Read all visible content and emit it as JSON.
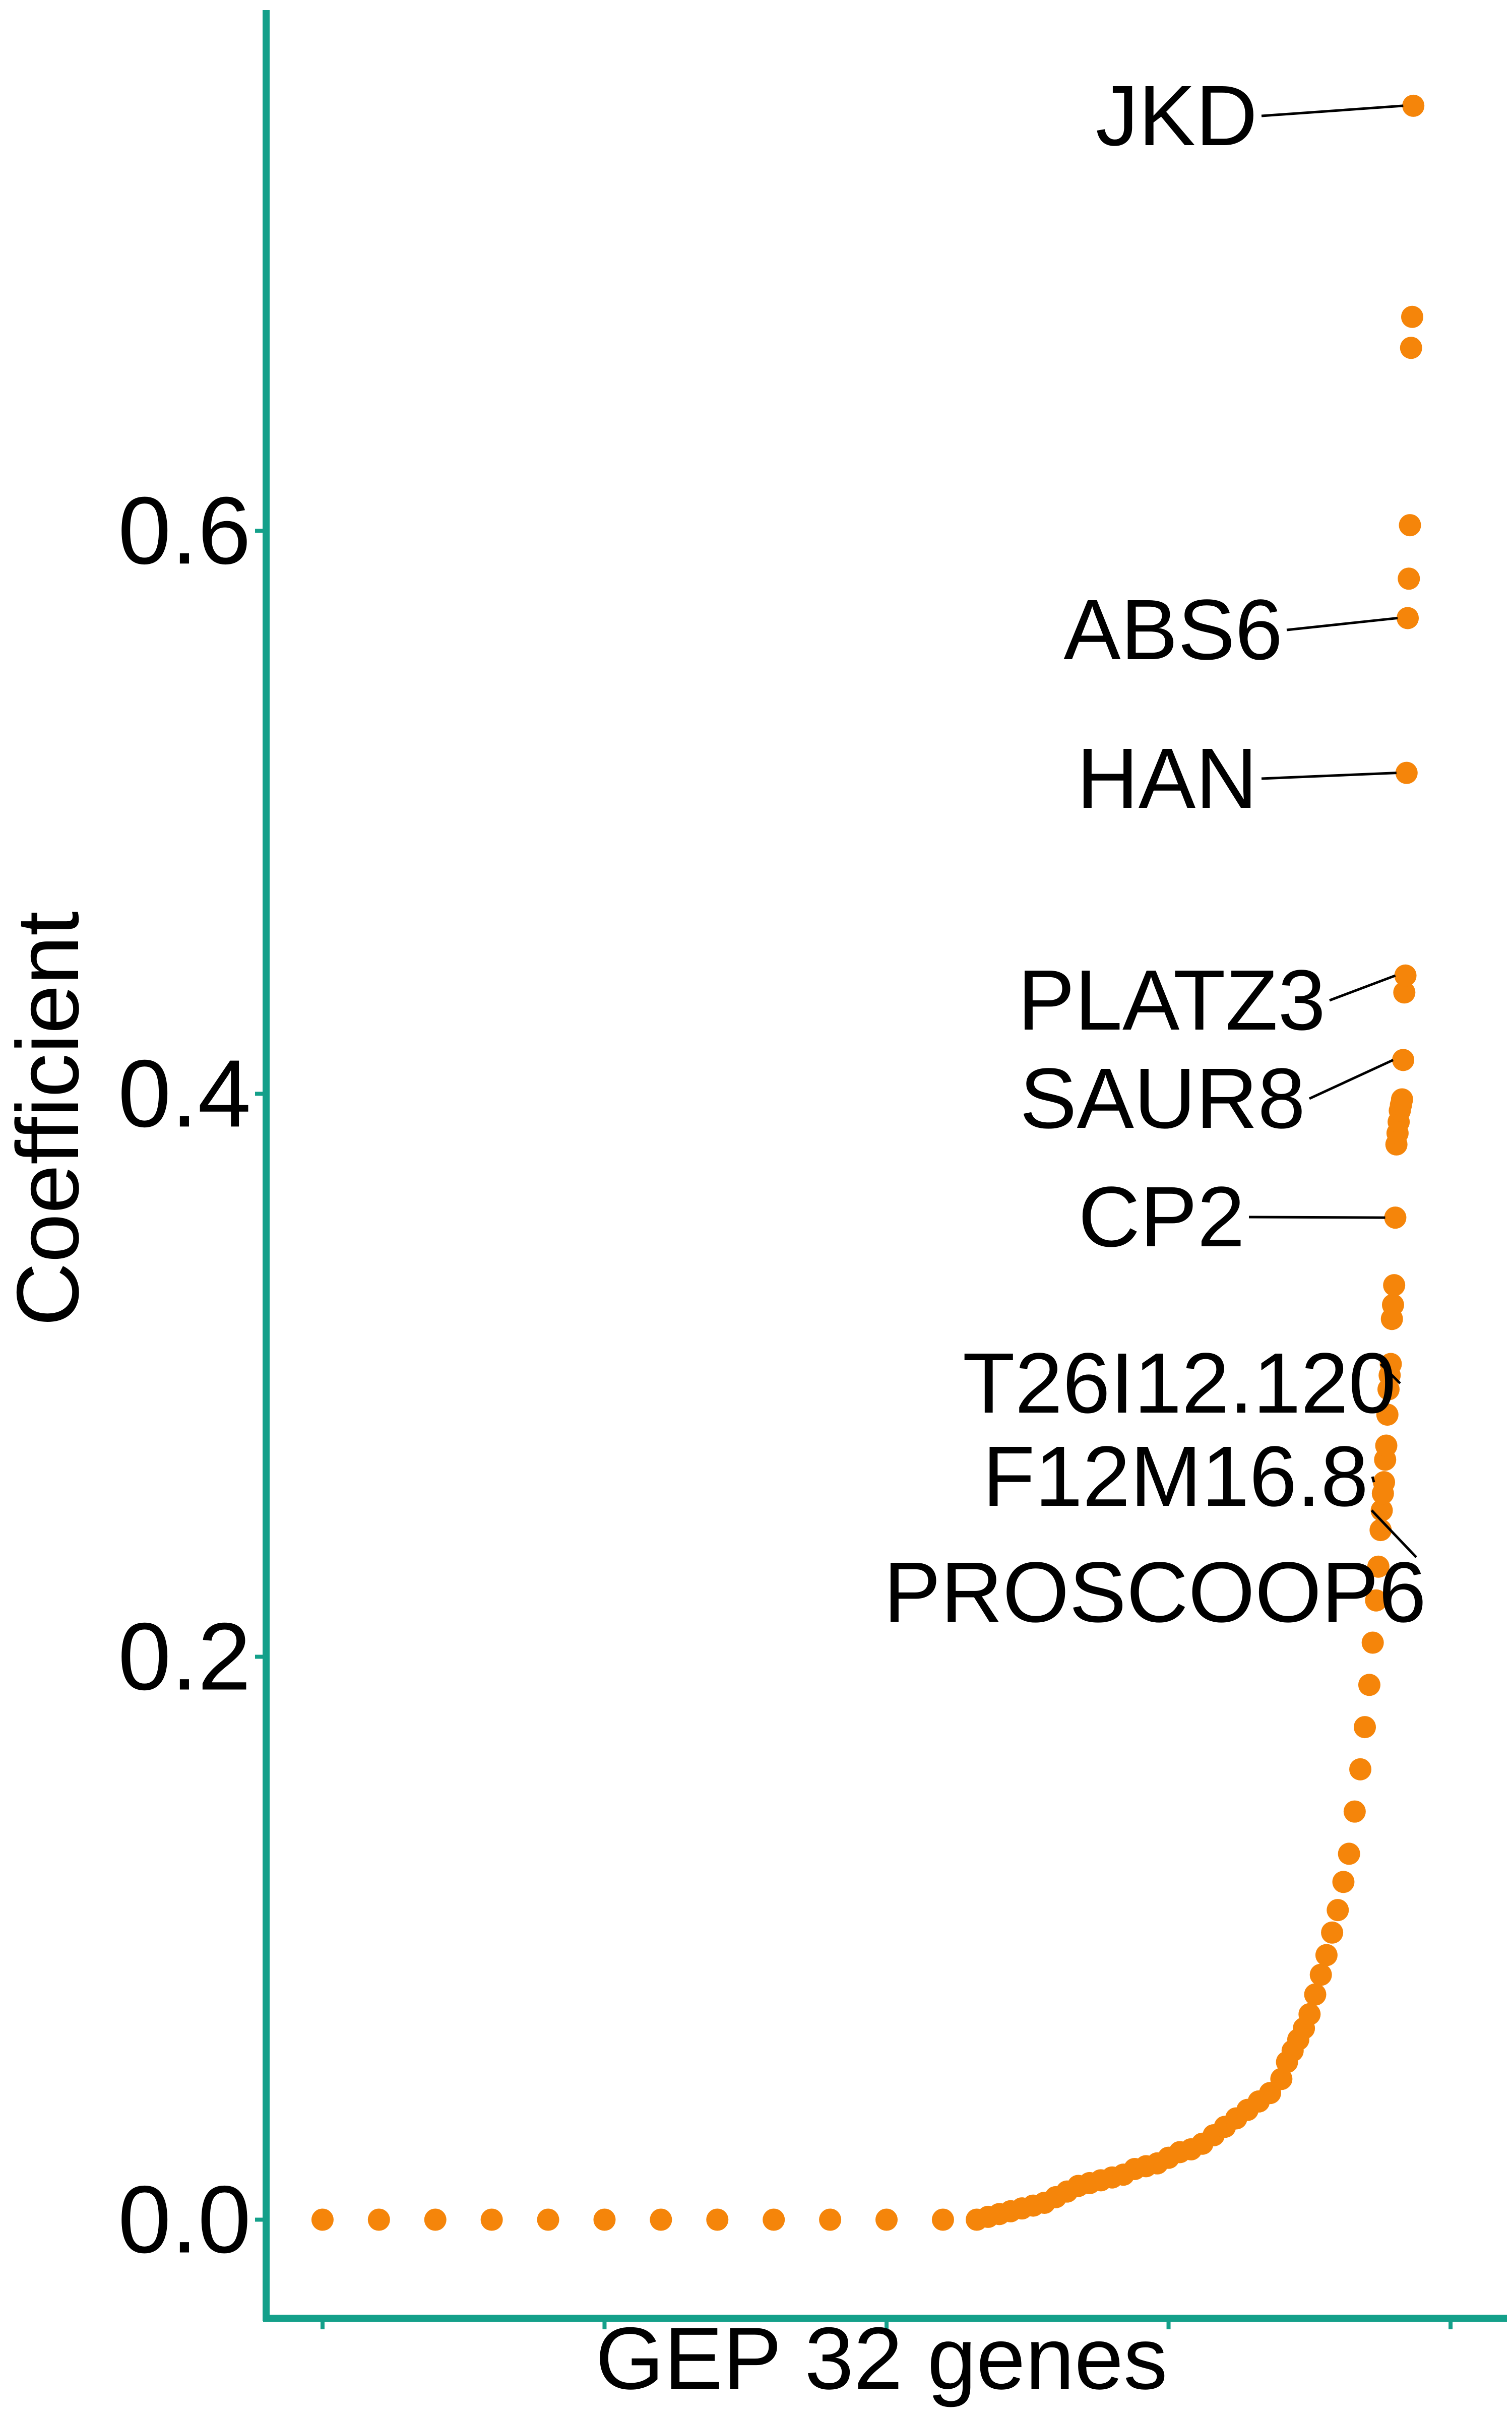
{
  "chart_data": {
    "type": "scatter",
    "title": "",
    "xlabel": "GEP 32 genes",
    "ylabel": "Coefficient",
    "ylim": [
      -0.035,
      0.785
    ],
    "xlim": [
      -0.05,
      1.05
    ],
    "y_ticks": [
      {
        "value": 0.0,
        "label": "0.0"
      },
      {
        "value": 0.2,
        "label": "0.2"
      },
      {
        "value": 0.4,
        "label": "0.4"
      },
      {
        "value": 0.6,
        "label": "0.6"
      }
    ],
    "x_ticks": [
      0.0,
      0.25,
      0.5,
      0.75,
      1.0
    ],
    "grid": false,
    "colors": {
      "points": "#f5850a",
      "axis": "#14a08a",
      "text": "#000000"
    },
    "points": [
      [
        0.0,
        0.0
      ],
      [
        0.05,
        0.0
      ],
      [
        0.1,
        0.0
      ],
      [
        0.15,
        0.0
      ],
      [
        0.2,
        0.0
      ],
      [
        0.25,
        0.0
      ],
      [
        0.3,
        0.0
      ],
      [
        0.35,
        0.0
      ],
      [
        0.4,
        0.0
      ],
      [
        0.45,
        0.0
      ],
      [
        0.5,
        0.0
      ],
      [
        0.55,
        0.0
      ],
      [
        0.58,
        0.0
      ],
      [
        0.59,
        0.001
      ],
      [
        0.6,
        0.002
      ],
      [
        0.61,
        0.003
      ],
      [
        0.62,
        0.004
      ],
      [
        0.63,
        0.005
      ],
      [
        0.64,
        0.006
      ],
      [
        0.65,
        0.008
      ],
      [
        0.66,
        0.01
      ],
      [
        0.67,
        0.012
      ],
      [
        0.68,
        0.013
      ],
      [
        0.69,
        0.014
      ],
      [
        0.7,
        0.015
      ],
      [
        0.71,
        0.016
      ],
      [
        0.72,
        0.018
      ],
      [
        0.73,
        0.019
      ],
      [
        0.74,
        0.02
      ],
      [
        0.75,
        0.022
      ],
      [
        0.76,
        0.024
      ],
      [
        0.77,
        0.025
      ],
      [
        0.78,
        0.027
      ],
      [
        0.79,
        0.03
      ],
      [
        0.8,
        0.033
      ],
      [
        0.81,
        0.036
      ],
      [
        0.82,
        0.039
      ],
      [
        0.83,
        0.042
      ],
      [
        0.84,
        0.045
      ],
      [
        0.85,
        0.05
      ],
      [
        0.855,
        0.056
      ],
      [
        0.86,
        0.06
      ],
      [
        0.865,
        0.064
      ],
      [
        0.87,
        0.068
      ],
      [
        0.875,
        0.073
      ],
      [
        0.88,
        0.08
      ],
      [
        0.885,
        0.087
      ],
      [
        0.89,
        0.094
      ],
      [
        0.895,
        0.102
      ],
      [
        0.9,
        0.11
      ],
      [
        0.905,
        0.12
      ],
      [
        0.91,
        0.13
      ],
      [
        0.915,
        0.145
      ],
      [
        0.92,
        0.16
      ],
      [
        0.924,
        0.175
      ],
      [
        0.928,
        0.19
      ],
      [
        0.931,
        0.205
      ],
      [
        0.934,
        0.22
      ],
      [
        0.936,
        0.232
      ],
      [
        0.938,
        0.245
      ],
      [
        0.939,
        0.252
      ],
      [
        0.94,
        0.258
      ],
      [
        0.941,
        0.262
      ],
      [
        0.942,
        0.27
      ],
      [
        0.943,
        0.275
      ],
      [
        0.944,
        0.286
      ],
      [
        0.945,
        0.295
      ],
      [
        0.946,
        0.3
      ],
      [
        0.947,
        0.304
      ],
      [
        0.948,
        0.32
      ],
      [
        0.949,
        0.325
      ],
      [
        0.95,
        0.332
      ],
      [
        0.951,
        0.356
      ],
      [
        0.952,
        0.382
      ],
      [
        0.953,
        0.386
      ],
      [
        0.954,
        0.39
      ],
      [
        0.955,
        0.394
      ],
      [
        0.956,
        0.396
      ],
      [
        0.957,
        0.398
      ],
      [
        0.958,
        0.412
      ],
      [
        0.959,
        0.436
      ],
      [
        0.96,
        0.442
      ],
      [
        0.961,
        0.514
      ],
      [
        0.962,
        0.569
      ],
      [
        0.963,
        0.583
      ],
      [
        0.964,
        0.602
      ],
      [
        0.965,
        0.665
      ],
      [
        0.966,
        0.676
      ],
      [
        0.967,
        0.751
      ]
    ],
    "annotations": [
      {
        "label": "JKD",
        "x": 0.967,
        "y": 0.751
      },
      {
        "label": "ABS6",
        "x": 0.962,
        "y": 0.569
      },
      {
        "label": "HAN",
        "x": 0.961,
        "y": 0.514
      },
      {
        "label": "PLATZ3",
        "x": 0.96,
        "y": 0.442
      },
      {
        "label": "SAUR8",
        "x": 0.958,
        "y": 0.412
      },
      {
        "label": "CP2",
        "x": 0.951,
        "y": 0.356
      },
      {
        "label": "T26I12.120",
        "x": 0.947,
        "y": 0.304
      },
      {
        "label": "F12M16.8",
        "x": 0.941,
        "y": 0.262
      },
      {
        "label": "PROSCOOP6",
        "x": 0.939,
        "y": 0.252
      }
    ]
  }
}
